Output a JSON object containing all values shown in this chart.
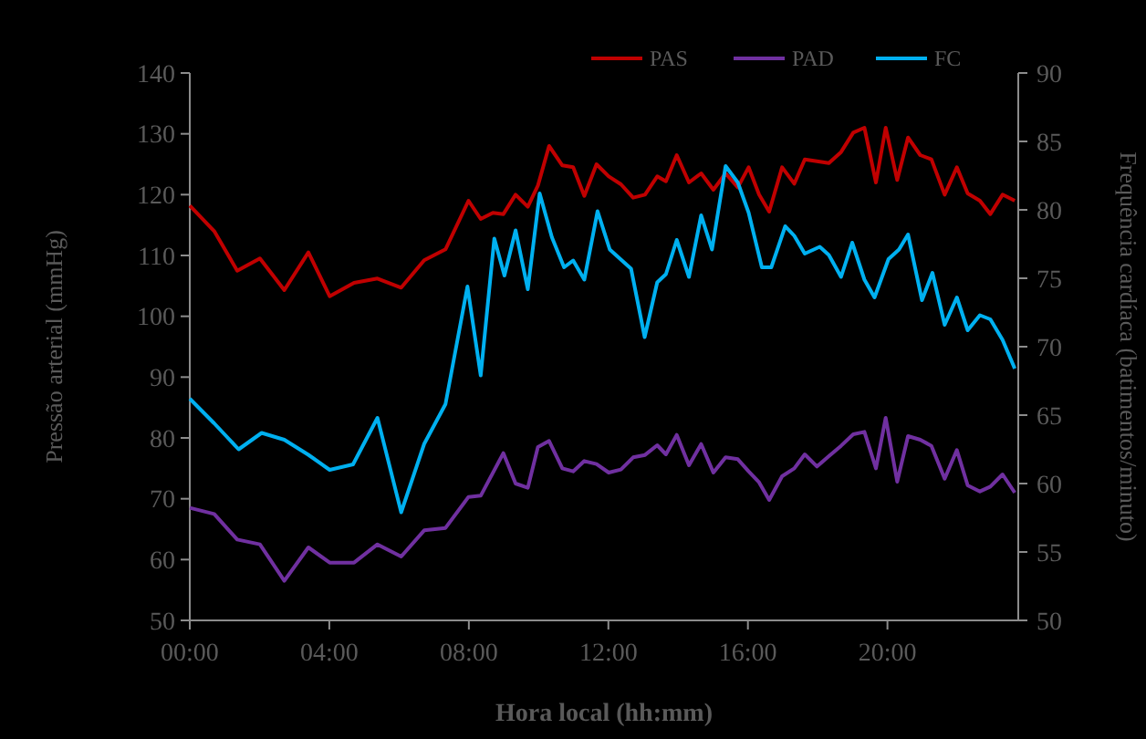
{
  "chart_data": {
    "type": "line",
    "xlabel": "Hora local (hh:mm)",
    "ylabel": "Pressão arterial (mmHg)",
    "y2label": "Frequência cardíaca (batimentos/minuto)",
    "xlim": [
      0,
      23.75
    ],
    "xticks": [
      {
        "value": 0,
        "label": "00:00"
      },
      {
        "value": 4,
        "label": "04:00"
      },
      {
        "value": 8,
        "label": "08:00"
      },
      {
        "value": 12,
        "label": "12:00"
      },
      {
        "value": 16,
        "label": "16:00"
      },
      {
        "value": 20,
        "label": "20:00"
      }
    ],
    "ylim": [
      50,
      140
    ],
    "yticks": [
      50,
      60,
      70,
      80,
      90,
      100,
      110,
      120,
      130,
      140
    ],
    "y2lim": [
      50,
      90
    ],
    "y2ticks": [
      50,
      55,
      60,
      65,
      70,
      75,
      80,
      85,
      90
    ],
    "grid": false,
    "legend": "top right",
    "marker": "none",
    "line_style": "solid",
    "series": [
      {
        "name": "PAS",
        "color": "#c00000",
        "x": [
          0,
          0.7,
          1.36,
          2.01,
          2.71,
          3.4,
          4.01,
          4.71,
          5.38,
          6.06,
          6.72,
          7.33,
          7.99,
          8.34,
          8.69,
          8.99,
          9.34,
          9.69,
          9.98,
          10.3,
          10.68,
          10.99,
          11.31,
          11.66,
          12.01,
          12.36,
          12.71,
          13.05,
          13.4,
          13.65,
          13.96,
          14.31,
          14.66,
          15.01,
          15.36,
          15.71,
          16.02,
          16.32,
          16.61,
          16.98,
          17.33,
          17.63,
          17.98,
          18.32,
          18.67,
          19.02,
          19.34,
          19.67,
          19.95,
          20.28,
          20.59,
          20.94,
          21.26,
          21.64,
          21.99,
          22.3,
          22.65,
          22.95,
          23.3,
          23.65
        ],
        "values": [
          118.2,
          114,
          107.5,
          109.5,
          104.3,
          110.5,
          103.3,
          105.5,
          106.2,
          104.7,
          109.2,
          111,
          119,
          116,
          117,
          116.8,
          120,
          118,
          121.5,
          128,
          124.8,
          124.5,
          119.8,
          125,
          123,
          121.7,
          119.5,
          120,
          123,
          122.2,
          126.5,
          122,
          123.5,
          120.8,
          123.5,
          121.2,
          124.5,
          120,
          117.2,
          124.5,
          121.8,
          125.8,
          125.5,
          125.2,
          127,
          130.2,
          131,
          122,
          131,
          122.4,
          129.4,
          126.5,
          125.8,
          120,
          124.5,
          120.2,
          119,
          116.8,
          120,
          119
        ]
      },
      {
        "name": "PAD",
        "color": "#7030a0",
        "x": [
          0,
          0.7,
          1.36,
          2.01,
          2.71,
          3.4,
          4.01,
          4.71,
          5.38,
          6.06,
          6.72,
          7.33,
          7.99,
          8.34,
          8.99,
          9.34,
          9.69,
          9.98,
          10.3,
          10.68,
          10.99,
          11.31,
          11.66,
          12.01,
          12.36,
          12.71,
          13.05,
          13.4,
          13.65,
          13.96,
          14.31,
          14.66,
          15.01,
          15.36,
          15.71,
          16.02,
          16.32,
          16.61,
          16.98,
          17.33,
          17.63,
          17.98,
          18.32,
          18.67,
          19.02,
          19.34,
          19.67,
          19.95,
          20.28,
          20.59,
          20.94,
          21.26,
          21.64,
          21.99,
          22.3,
          22.65,
          22.95,
          23.3,
          23.65
        ],
        "values": [
          68.5,
          67.5,
          63.3,
          62.5,
          56.5,
          62,
          59.5,
          59.5,
          62.5,
          60.5,
          64.8,
          65.2,
          70.3,
          70.5,
          77.5,
          72.5,
          71.8,
          78.5,
          79.5,
          75,
          74.5,
          76.2,
          75.7,
          74.3,
          74.8,
          76.8,
          77.2,
          78.8,
          77.3,
          80.5,
          75.5,
          79,
          74.3,
          76.8,
          76.5,
          74.5,
          72.7,
          69.8,
          73.7,
          75,
          77.3,
          75.3,
          77,
          78.7,
          80.6,
          81,
          75,
          83.3,
          72.8,
          80.3,
          79.7,
          78.7,
          73.3,
          78,
          72.2,
          71.2,
          72,
          74,
          71
        ]
      },
      {
        "name": "FC",
        "color": "#00b0f0",
        "axis": "y2",
        "x": [
          0,
          0.7,
          1.4,
          2.06,
          2.71,
          3.4,
          4.01,
          4.68,
          5.38,
          6.06,
          6.72,
          7.33,
          7.96,
          8.34,
          8.73,
          9.02,
          9.34,
          9.69,
          10.03,
          10.38,
          10.73,
          10.99,
          11.31,
          11.69,
          12.04,
          12.65,
          13.04,
          13.4,
          13.65,
          13.96,
          14.31,
          14.66,
          14.97,
          15.36,
          15.71,
          16.02,
          16.4,
          16.67,
          17.07,
          17.33,
          17.63,
          18.06,
          18.32,
          18.67,
          18.99,
          19.34,
          19.63,
          20.03,
          20.33,
          20.59,
          20.99,
          21.29,
          21.64,
          21.99,
          22.3,
          22.65,
          22.95,
          23.3,
          23.65
        ],
        "values": [
          66.2,
          64.4,
          62.5,
          63.7,
          63.2,
          62.1,
          61,
          61.4,
          64.8,
          57.9,
          62.9,
          65.8,
          74.4,
          67.9,
          77.9,
          75.2,
          78.5,
          74.2,
          81.2,
          78,
          75.8,
          76.3,
          74.9,
          79.9,
          77.1,
          75.7,
          70.7,
          74.7,
          75.3,
          77.8,
          75.1,
          79.6,
          77.1,
          83.2,
          82,
          79.8,
          75.8,
          75.8,
          78.8,
          78.1,
          76.8,
          77.3,
          76.7,
          75.1,
          77.6,
          74.9,
          73.6,
          76.4,
          77.1,
          78.2,
          73.4,
          75.4,
          71.6,
          73.6,
          71.2,
          72.3,
          72,
          70.5,
          68.4
        ]
      }
    ]
  }
}
